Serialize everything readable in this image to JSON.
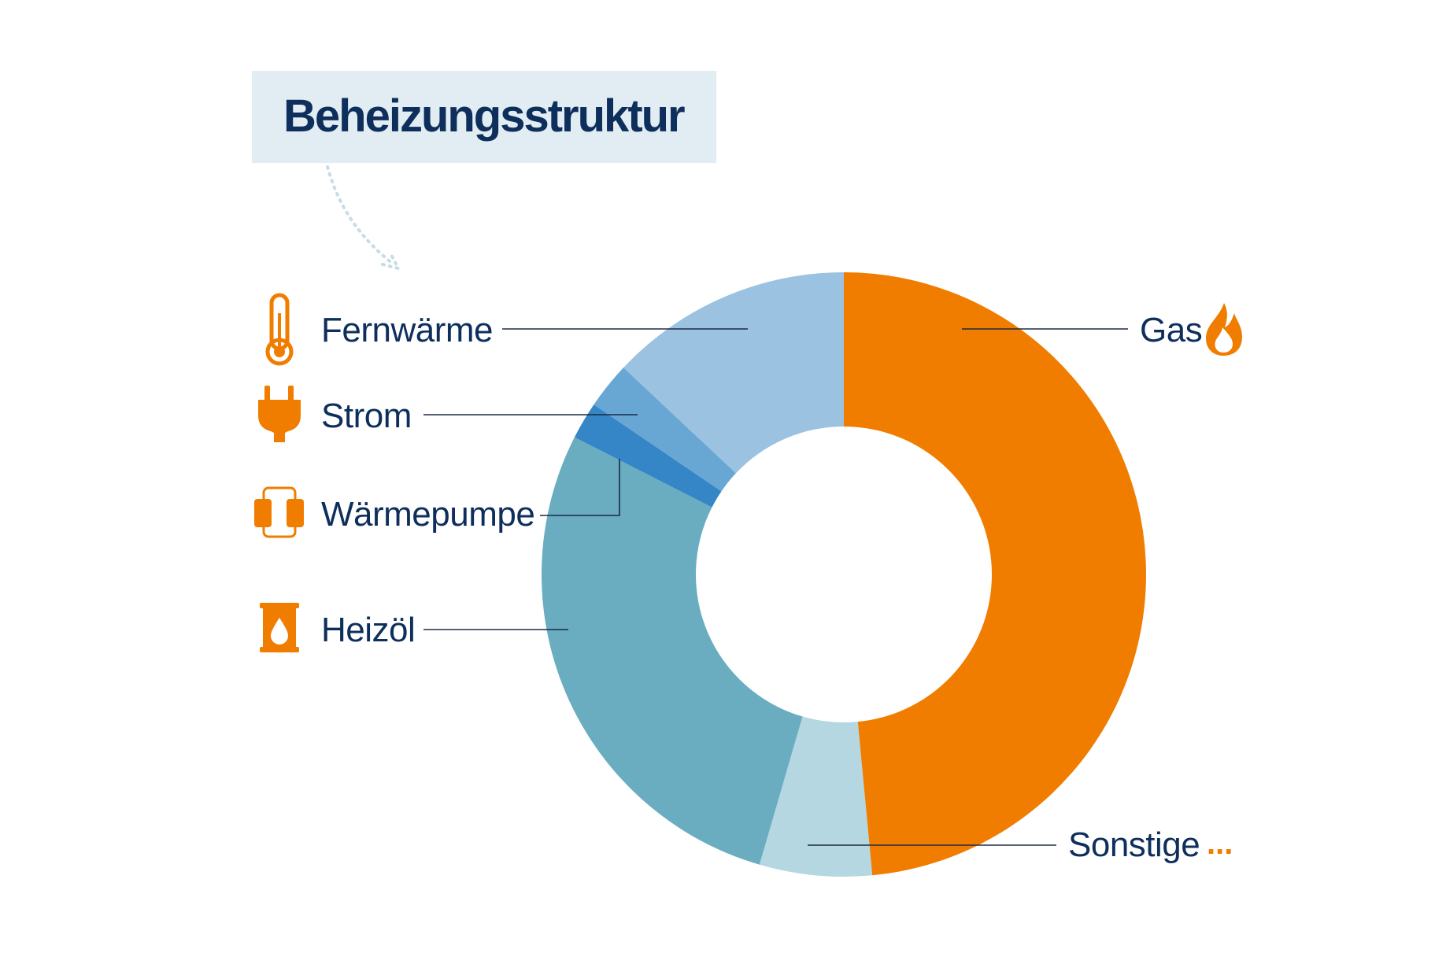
{
  "title": "Beheizungsstruktur",
  "colors": {
    "accent_orange": "#f07d00",
    "text_navy": "#0e2f5c",
    "title_bg": "#e1edf2",
    "dotted_arrow": "#c7dde6"
  },
  "icons": {
    "fernwaerme": "thermometer-icon",
    "strom": "plug-icon",
    "waermepumpe": "heat-pump-icon",
    "heizoel": "oil-barrel-icon",
    "gas": "flame-icon",
    "sonstige": "ellipsis-icon"
  },
  "more_marker": "...",
  "chart_data": {
    "type": "pie",
    "title": "Beheizungsstruktur",
    "donut": true,
    "legend": "labels with leader lines",
    "slices": [
      {
        "label": "Gas",
        "value": 48.5,
        "color": "#f07d00"
      },
      {
        "label": "Sonstige",
        "value": 6.0,
        "color": "#b4d7e1"
      },
      {
        "label": "Heizöl",
        "value": 28.0,
        "color": "#6aadc0"
      },
      {
        "label": "Wärmepumpe",
        "value": 2.0,
        "color": "#3586c6"
      },
      {
        "label": "Strom",
        "value": 2.5,
        "color": "#68a6d4"
      },
      {
        "label": "Fernwärme",
        "value": 13.0,
        "color": "#9bc3e1"
      }
    ]
  }
}
